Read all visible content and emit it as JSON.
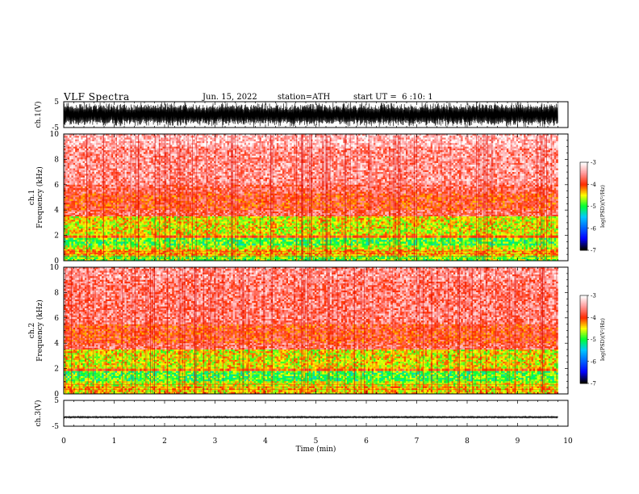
{
  "header": {
    "title": "VLF Spectra",
    "date": "Jun. 15, 2022",
    "station": "station=ATH",
    "start": "start UT =  6 :10: 1"
  },
  "chart_data": [
    {
      "type": "line",
      "panel": "ch1-waveform",
      "ylabel": "ch.1(V)",
      "ylim": [
        -5,
        5
      ],
      "yticks": [
        "5",
        "-5"
      ],
      "xlim": [
        0,
        10
      ],
      "x_end": 9.8,
      "amplitude": 5,
      "series": [
        {
          "values": [
            -5,
            5
          ]
        }
      ]
    },
    {
      "type": "heatmap",
      "panel": "ch1-spectrogram",
      "ylabel": "ch.1\nFrequency (kHz)",
      "ylim": [
        0,
        10
      ],
      "yticks": [
        "0",
        "2",
        "4",
        "6",
        "8",
        "10"
      ],
      "xlim": [
        0,
        10
      ],
      "x_end": 9.8,
      "bands": [
        {
          "f": [
            9.0,
            10.0
          ],
          "level": -3.3
        },
        {
          "f": [
            6.0,
            9.0
          ],
          "level": -3.5
        },
        {
          "f": [
            5.3,
            6.0
          ],
          "level": -3.7
        },
        {
          "f": [
            4.0,
            5.3
          ],
          "level": -3.9
        },
        {
          "f": [
            3.5,
            4.0
          ],
          "level": -3.7
        },
        {
          "f": [
            2.0,
            3.5
          ],
          "level": -4.5
        },
        {
          "f": [
            1.8,
            2.0
          ],
          "level": -4.1
        },
        {
          "f": [
            1.2,
            1.8
          ],
          "level": -4.9
        },
        {
          "f": [
            0.9,
            1.2
          ],
          "level": -4.6
        },
        {
          "f": [
            0.4,
            0.9
          ],
          "level": -4.3
        },
        {
          "f": [
            0.0,
            0.4
          ],
          "level": -4.8
        }
      ],
      "colorbar": {
        "label": "log(PSD)(V²/Hz)",
        "range": [
          -7,
          -3
        ],
        "ticks": [
          "-3",
          "-4",
          "-5",
          "-6",
          "-7"
        ]
      }
    },
    {
      "type": "heatmap",
      "panel": "ch2-spectrogram",
      "ylabel": "ch.2\nFrequency (kHz)",
      "ylim": [
        0,
        10
      ],
      "yticks": [
        "0",
        "2",
        "4",
        "6",
        "8",
        "10"
      ],
      "xlim": [
        0,
        10
      ],
      "x_end": 9.8,
      "bands": [
        {
          "f": [
            9.0,
            10.0
          ],
          "level": -3.5
        },
        {
          "f": [
            5.5,
            9.0
          ],
          "level": -3.6
        },
        {
          "f": [
            4.0,
            5.5
          ],
          "level": -3.9
        },
        {
          "f": [
            3.5,
            4.0
          ],
          "level": -3.7
        },
        {
          "f": [
            2.0,
            3.5
          ],
          "level": -4.5
        },
        {
          "f": [
            1.8,
            2.0
          ],
          "level": -4.1
        },
        {
          "f": [
            1.0,
            1.8
          ],
          "level": -4.9
        },
        {
          "f": [
            0.6,
            1.0
          ],
          "level": -4.6
        },
        {
          "f": [
            0.0,
            0.6
          ],
          "level": -4.4
        }
      ],
      "colorbar": {
        "label": "log(PSD)(V²/Hz)",
        "range": [
          -7,
          -3
        ],
        "ticks": [
          "-3",
          "-4",
          "-5",
          "-6",
          "-7"
        ]
      }
    },
    {
      "type": "line",
      "panel": "ch3-waveform",
      "ylabel": "ch.3(V)",
      "ylim": [
        -5,
        5
      ],
      "yticks": [
        "5",
        "-5"
      ],
      "xlim": [
        0,
        10
      ],
      "x_end": 9.8,
      "amplitude": 0.35,
      "center": -1.5,
      "series": [
        {
          "values": [
            -1.85,
            -1.15
          ]
        }
      ]
    }
  ],
  "xaxis": {
    "label": "Time (min)",
    "ticks": [
      "0",
      "1",
      "2",
      "3",
      "4",
      "5",
      "6",
      "7",
      "8",
      "9",
      "10"
    ]
  },
  "colors": {
    "white": "#ffffff",
    "red": "#ff2a00",
    "yellow": "#ffff00",
    "green": "#00ff33",
    "blue": "#0000ff",
    "black": "#000000"
  }
}
